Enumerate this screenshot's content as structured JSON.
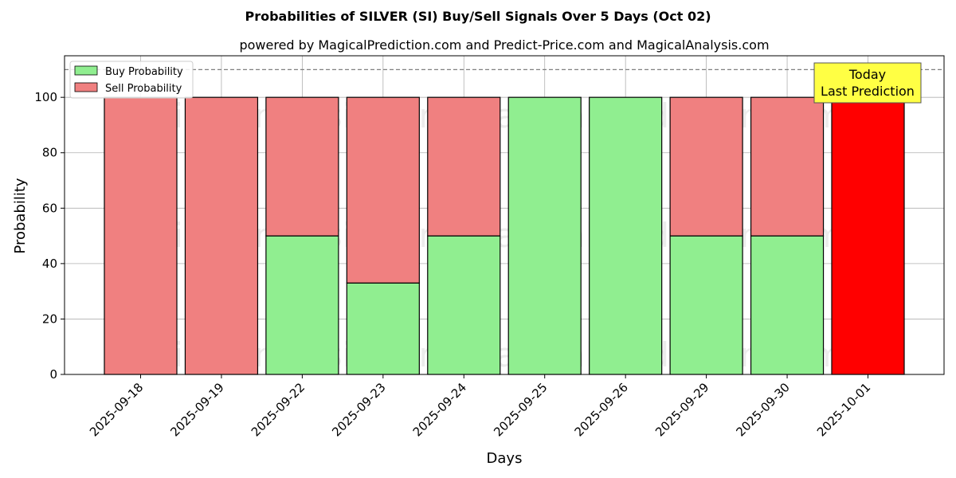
{
  "chart_data": {
    "type": "bar",
    "title": "Probabilities of SILVER (SI) Buy/Sell Signals Over 5 Days (Oct 02)",
    "subtitle": "powered by MagicalPrediction.com and Predict-Price.com and MagicalAnalysis.com",
    "xlabel": "Days",
    "ylabel": "Probability",
    "ylim": [
      0,
      115
    ],
    "yticks": [
      0,
      20,
      40,
      60,
      80,
      100
    ],
    "categories": [
      "2025-09-18",
      "2025-09-19",
      "2025-09-22",
      "2025-09-23",
      "2025-09-24",
      "2025-09-25",
      "2025-09-26",
      "2025-09-29",
      "2025-09-30",
      "2025-10-01"
    ],
    "series": [
      {
        "name": "Buy Probability",
        "color": "#90ee90",
        "values": [
          0,
          0,
          50,
          33,
          50,
          100,
          100,
          50,
          50,
          0
        ]
      },
      {
        "name": "Sell Probability",
        "color": "#f08080",
        "values": [
          100,
          100,
          50,
          67,
          50,
          0,
          0,
          50,
          50,
          100
        ]
      }
    ],
    "highlight": {
      "index": 9,
      "color": "#ff0000"
    },
    "reference_line": 110,
    "annotation": {
      "line1": "Today",
      "line2": "Last Prediction",
      "color": "#ffff44"
    },
    "legend_position": "upper-left",
    "grid": true,
    "watermarks": [
      "MagicalAnalysis.com",
      "MagicalPrediction.com"
    ]
  }
}
